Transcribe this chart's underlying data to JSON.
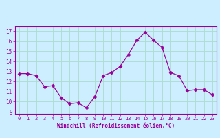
{
  "x": [
    0,
    1,
    2,
    3,
    4,
    5,
    6,
    7,
    8,
    9,
    10,
    11,
    12,
    13,
    14,
    15,
    16,
    17,
    18,
    19,
    20,
    21,
    22,
    23
  ],
  "y": [
    12.8,
    12.8,
    12.6,
    11.5,
    11.6,
    10.4,
    9.8,
    9.9,
    9.4,
    10.5,
    12.6,
    12.9,
    13.5,
    14.7,
    16.1,
    16.9,
    16.1,
    15.4,
    12.9,
    12.6,
    11.1,
    11.2,
    11.2,
    10.7
  ],
  "line_color": "#990099",
  "marker": "D",
  "marker_size": 2.5,
  "bg_color": "#cceeff",
  "grid_color": "#aaddcc",
  "xlabel": "Windchill (Refroidissement éolien,°C)",
  "xlabel_color": "#990099",
  "tick_color": "#990099",
  "ylim": [
    8.8,
    17.5
  ],
  "xlim": [
    -0.5,
    23.5
  ],
  "yticks": [
    9,
    10,
    11,
    12,
    13,
    14,
    15,
    16,
    17
  ],
  "xticks": [
    0,
    1,
    2,
    3,
    4,
    5,
    6,
    7,
    8,
    9,
    10,
    11,
    12,
    13,
    14,
    15,
    16,
    17,
    18,
    19,
    20,
    21,
    22,
    23
  ]
}
